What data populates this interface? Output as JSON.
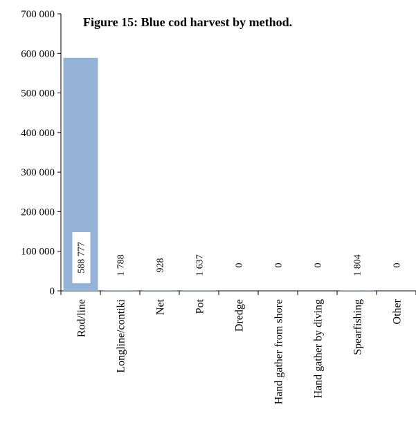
{
  "chart_data": {
    "type": "bar",
    "title": "Figure 15: Blue cod harvest by method.",
    "xlabel": "",
    "ylabel": "",
    "ylim": [
      0,
      700000
    ],
    "y_ticks": [
      "0",
      "100 000",
      "200 000",
      "300 000",
      "400 000",
      "500 000",
      "600 000",
      "700 000"
    ],
    "categories": [
      "Rod/line",
      "Longline/contiki",
      "Net",
      "Pot",
      "Dredge",
      "Hand gather from shore",
      "Hand gather by diving",
      "Spearfishing",
      "Other"
    ],
    "values": [
      588777,
      1788,
      928,
      1637,
      0,
      0,
      0,
      1804,
      0
    ],
    "data_labels": [
      "588 777",
      "1 788",
      "928",
      "1 637",
      "0",
      "0",
      "0",
      "1 804",
      "0"
    ],
    "bar_color": "#95b3d7",
    "grid": false,
    "legend": "none"
  }
}
